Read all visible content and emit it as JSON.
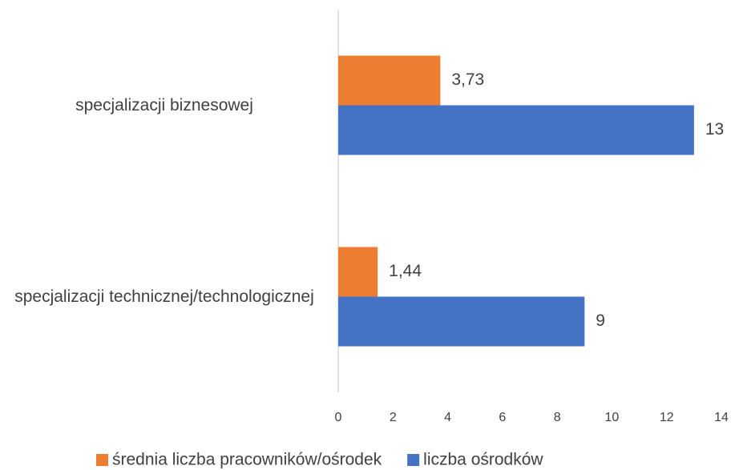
{
  "chart_data": {
    "type": "hbar",
    "categories": [
      "specjalizacji biznesowej",
      "specjalizacji technicznej/technologicznej"
    ],
    "series": [
      {
        "name": "średnia liczba pracowników/ośrodek",
        "color": "#ed7d31",
        "values": [
          3.73,
          1.44
        ],
        "value_labels": [
          "3,73",
          "1,44"
        ]
      },
      {
        "name": "liczba ośrodków",
        "color": "#4472c4",
        "values": [
          13,
          9
        ]
      }
    ],
    "xlim": [
      0,
      14
    ],
    "xticks": [
      0,
      2,
      4,
      6,
      8,
      10,
      12,
      14
    ],
    "legend": "bottom"
  }
}
